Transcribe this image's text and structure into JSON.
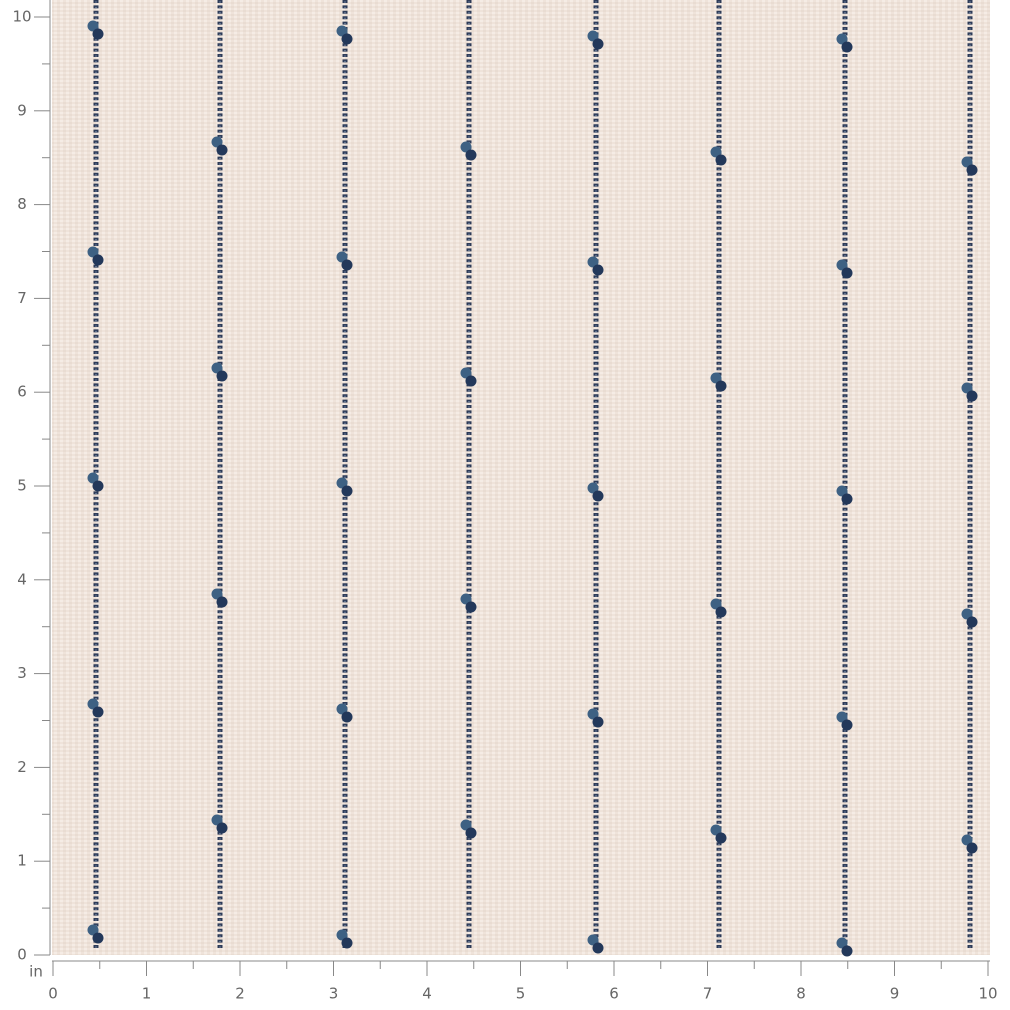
{
  "ruler": {
    "unit": "in",
    "x_labels": [
      0,
      1,
      2,
      3,
      4,
      5,
      6,
      7,
      8,
      9,
      10
    ],
    "y_labels": [
      0,
      1,
      2,
      3,
      4,
      5,
      6,
      7,
      8,
      9,
      10
    ]
  }
}
